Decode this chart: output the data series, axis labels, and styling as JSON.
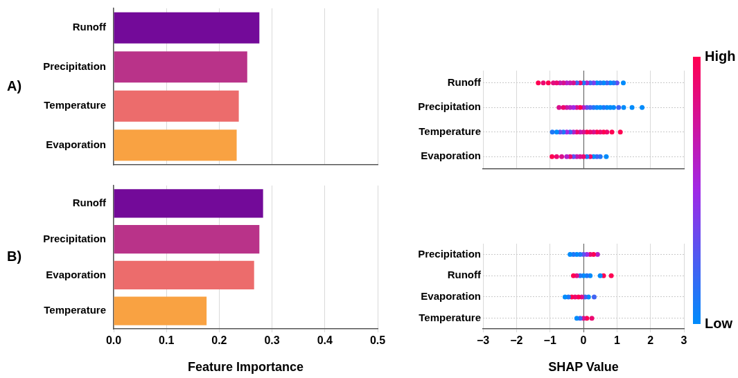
{
  "chart_data": [
    {
      "type": "bar",
      "orientation": "horizontal",
      "categories": [
        "Runoff",
        "Precipitation",
        "Temperature",
        "Evaporation"
      ],
      "values": [
        0.276,
        0.253,
        0.237,
        0.233
      ],
      "colors": [
        "#730a99",
        "#b93389",
        "#ec6c6c",
        "#f9a242"
      ],
      "xlim": [
        0,
        0.5
      ],
      "xticks": [
        0,
        0.1,
        0.2,
        0.3,
        0.4,
        0.5
      ],
      "grid": "x",
      "tick_labels": "y",
      "annotations": [
        "A)"
      ]
    },
    {
      "type": "scatter",
      "orientation": "horizontal",
      "marker": "circle",
      "categories": [
        "Runoff",
        "Precipitation",
        "Temperature",
        "Evaporation"
      ],
      "series": [
        {
          "values": [
            -1.35,
            -0.73,
            -0.93,
            -0.94
          ],
          "colors": [
            "#ff0052",
            "#d9108d",
            "#2077f7",
            "#ff0052"
          ]
        },
        {
          "values": [
            -1.2,
            -0.6,
            -0.8,
            -0.8
          ],
          "colors": [
            "#ec0870",
            "#ec0870",
            "#008bfb",
            "#ec0870"
          ]
        },
        {
          "values": [
            -1.05,
            -0.5,
            -0.7,
            -0.65
          ],
          "colors": [
            "#ff0052",
            "#c618ab",
            "#604fef",
            "#d9108d"
          ]
        },
        {
          "values": [
            -0.9,
            -0.4,
            -0.6,
            -0.5
          ],
          "colors": [
            "#e30c7e",
            "#b320c8",
            "#2077f7",
            "#b320c8"
          ]
        },
        {
          "values": [
            -0.8,
            -0.3,
            -0.5,
            -0.4
          ],
          "colors": [
            "#ec0870",
            "#a028e6",
            "#a028e6",
            "#ec0870"
          ]
        },
        {
          "values": [
            -0.7,
            -0.2,
            -0.4,
            -0.3
          ],
          "colors": [
            "#c618ab",
            "#d9108d",
            "#4063f3",
            "#604fef"
          ]
        },
        {
          "values": [
            -0.6,
            -0.1,
            -0.3,
            -0.2
          ],
          "colors": [
            "#d9108d",
            "#ff0052",
            "#b320c8",
            "#c618ab"
          ]
        },
        {
          "values": [
            -0.5,
            0,
            -0.2,
            -0.1
          ],
          "colors": [
            "#b320c8",
            "#b320c8",
            "#ec0870",
            "#d9108d"
          ]
        },
        {
          "values": [
            -0.4,
            0.1,
            -0.1,
            0
          ],
          "colors": [
            "#c618ab",
            "#604fef",
            "#c618ab",
            "#ec0870"
          ]
        },
        {
          "values": [
            -0.3,
            0.2,
            0,
            0.1
          ],
          "colors": [
            "#d9108d",
            "#4063f3",
            "#d9108d",
            "#2077f7"
          ]
        },
        {
          "values": [
            -0.2,
            0.3,
            0.1,
            0.2
          ],
          "colors": [
            "#4063f3",
            "#2077f7",
            "#ff0052",
            "#ec0870"
          ]
        },
        {
          "values": [
            -0.1,
            0.4,
            0.2,
            0.3
          ],
          "colors": [
            "#ec0870",
            "#008bfb",
            "#ec0870",
            "#008bfb"
          ]
        },
        {
          "values": [
            0,
            0.5,
            0.3,
            0.4
          ],
          "colors": [
            "#2077f7",
            "#008bfb",
            "#d9108d",
            "#4063f3"
          ]
        },
        {
          "values": [
            0.1,
            0.6,
            0.4,
            0.5
          ],
          "colors": [
            "#b320c8",
            "#2077f7",
            "#ff0052",
            "#2077f7"
          ]
        },
        {
          "values": [
            0.2,
            0.7,
            0.5,
            0.68
          ],
          "colors": [
            "#4063f3",
            "#008bfb",
            "#ec0870",
            "#008bfb"
          ]
        },
        {
          "values": [
            0.3,
            0.8,
            0.6,
            null
          ],
          "colors": [
            "#803ceb",
            "#008bfb",
            "#ff0052",
            null
          ]
        },
        {
          "values": [
            0.4,
            0.9,
            0.7,
            null
          ],
          "colors": [
            "#008bfb",
            "#008bfb",
            "#ec0870",
            null
          ]
        },
        {
          "values": [
            0.5,
            1.05,
            0.85,
            null
          ],
          "colors": [
            "#2077f7",
            "#4063f3",
            "#ff0052",
            null
          ]
        },
        {
          "values": [
            0.6,
            1.2,
            1.1,
            null
          ],
          "colors": [
            "#008bfb",
            "#008bfb",
            "#ff0052",
            null
          ]
        },
        {
          "values": [
            0.7,
            1.45,
            null,
            null
          ],
          "colors": [
            "#4063f3",
            "#008bfb",
            null,
            null
          ]
        },
        {
          "values": [
            0.8,
            1.75,
            null,
            null
          ],
          "colors": [
            "#008bfb",
            "#008bfb",
            null,
            null
          ]
        },
        {
          "values": [
            0.9,
            null,
            null,
            null
          ],
          "colors": [
            "#2077f7",
            null,
            null,
            null
          ]
        },
        {
          "values": [
            1.0,
            null,
            null,
            null
          ],
          "colors": [
            "#604fef",
            null,
            null,
            null
          ]
        },
        {
          "values": [
            1.19,
            null,
            null,
            null
          ],
          "colors": [
            "#008bfb",
            null,
            null,
            null
          ]
        }
      ],
      "xlim": [
        -3,
        3
      ],
      "xticks": [
        -3,
        -2,
        -1,
        0,
        1,
        2,
        3
      ],
      "grid": true,
      "tick_labels": "y",
      "clim": [
        0,
        1
      ],
      "cticks": [
        {
          "value": 0,
          "label": "Low"
        },
        {
          "value": 1,
          "label": "High"
        }
      ]
    },
    {
      "type": "bar",
      "orientation": "horizontal",
      "categories": [
        "Runoff",
        "Precipitation",
        "Evaporation",
        "Temperature"
      ],
      "values": [
        0.283,
        0.276,
        0.266,
        0.176
      ],
      "colors": [
        "#730a99",
        "#b93389",
        "#ec6c6c",
        "#f9a242"
      ],
      "xlim": [
        0,
        0.5
      ],
      "xticks": [
        {
          "value": 0,
          "label": "0.0"
        },
        0.1,
        0.2,
        0.3,
        0.4,
        0.5
      ],
      "xlabel": "Feature Importance",
      "grid": "x",
      "annotations": [
        "B)"
      ]
    },
    {
      "type": "scatter",
      "orientation": "horizontal",
      "marker": "circle",
      "categories": [
        "Precipitation",
        "Runoff",
        "Evaporation",
        "Temperature"
      ],
      "series": [
        {
          "values": [
            -0.4,
            -0.3,
            -0.55,
            -0.2
          ],
          "colors": [
            "#008bfb",
            "#ff0052",
            "#008bfb",
            "#008bfb"
          ]
        },
        {
          "values": [
            -0.3,
            -0.2,
            -0.45,
            -0.1
          ],
          "colors": [
            "#2077f7",
            "#d9108d",
            "#2077f7",
            "#4063f3"
          ]
        },
        {
          "values": [
            -0.2,
            -0.1,
            -0.35,
            0
          ],
          "colors": [
            "#008bfb",
            "#2077f7",
            "#ff0052",
            "#d9108d"
          ]
        },
        {
          "values": [
            -0.1,
            0,
            -0.25,
            0.1
          ],
          "colors": [
            "#2077f7",
            "#008bfb",
            "#ec0870",
            "#ff0052"
          ]
        },
        {
          "values": [
            0,
            0.1,
            -0.15,
            0.25
          ],
          "colors": [
            "#604fef",
            "#2077f7",
            "#ff0052",
            "#ec0870"
          ]
        },
        {
          "values": [
            0.1,
            0.2,
            -0.05,
            null
          ],
          "colors": [
            "#a028e6",
            "#008bfb",
            "#d9108d",
            null
          ]
        },
        {
          "values": [
            0.2,
            0.5,
            0.05,
            null
          ],
          "colors": [
            "#ec0870",
            "#008bfb",
            "#4063f3",
            null
          ]
        },
        {
          "values": [
            0.3,
            0.6,
            0.15,
            null
          ],
          "colors": [
            "#ff0052",
            "#ff0052",
            "#008bfb",
            null
          ]
        },
        {
          "values": [
            0.42,
            0.83,
            0.32,
            null
          ],
          "colors": [
            "#b320c8",
            "#ff0052",
            "#4063f3",
            null
          ]
        }
      ],
      "xlim": [
        -3,
        3
      ],
      "xticks": [
        {
          "value": -3,
          "label": "−3"
        },
        {
          "value": -2,
          "label": "−2"
        },
        {
          "value": -1,
          "label": "−1"
        },
        0,
        1,
        2,
        3
      ],
      "xlabel": "SHAP Value",
      "grid": true
    }
  ]
}
